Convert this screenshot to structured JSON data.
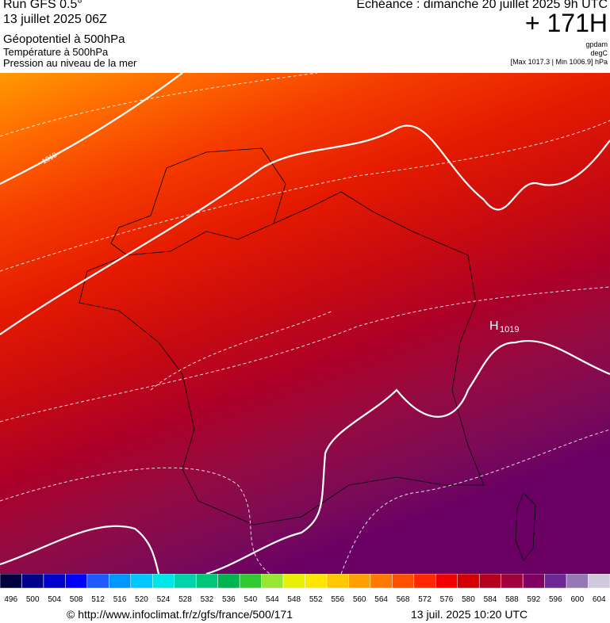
{
  "header": {
    "run": "Run GFS 0.5°",
    "date": "13 juillet 2025 06Z",
    "field1": "Géopotentiel à 500hPa",
    "field2": "Température à 500hPa",
    "field3": "Pression au niveau de la mer",
    "echeance": "Echéance : dimanche 20 juillet 2025 9h UTC",
    "lead": "+ 171H",
    "unit1": "gpdam",
    "unit2": "degC",
    "range": "[Max 1017.3 | Min 1006.9] hPa"
  },
  "map": {
    "high_symbol": "H",
    "high_value": "1019",
    "isobar_label": "1018"
  },
  "colorbar": {
    "labels": [
      496,
      500,
      504,
      508,
      512,
      516,
      520,
      524,
      528,
      532,
      536,
      540,
      544,
      548,
      552,
      556,
      560,
      564,
      568,
      572,
      576,
      580,
      584,
      588,
      592,
      596,
      600,
      604
    ],
    "colors": [
      "#000040",
      "#00008b",
      "#0000cd",
      "#0000ff",
      "#1e5aff",
      "#0096ff",
      "#00c8ff",
      "#00e6e6",
      "#00d2aa",
      "#00c878",
      "#00b450",
      "#32c832",
      "#96e632",
      "#e6f000",
      "#ffe600",
      "#ffc800",
      "#ffa000",
      "#ff7800",
      "#ff5000",
      "#ff2800",
      "#f00000",
      "#d20000",
      "#b4001e",
      "#a0003c",
      "#800064",
      "#6e2896",
      "#9678b4",
      "#d2c8dc"
    ]
  },
  "footer": {
    "source": "© http://www.infoclimat.fr/z/gfs/france/500/171",
    "timestamp": "13 juil. 2025 10:20 UTC"
  }
}
